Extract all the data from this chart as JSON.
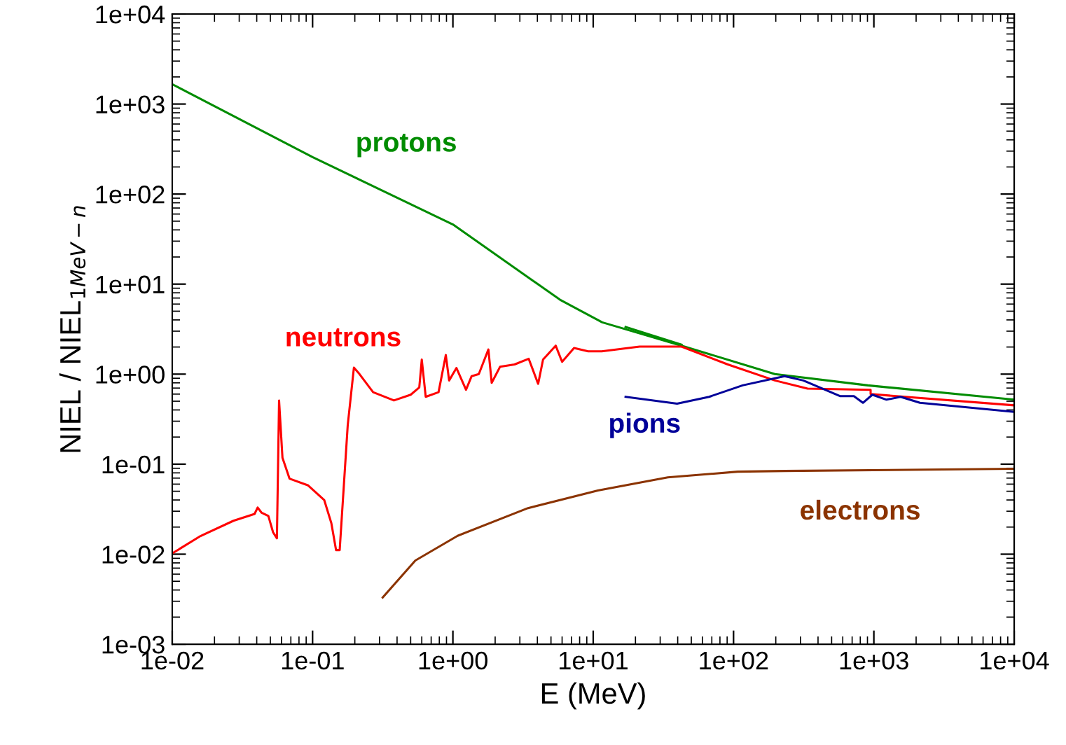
{
  "chart_data": {
    "type": "line",
    "xlabel": "E (MeV)",
    "ylabel": "NIEL / NIEL$_{1MeV−n}$",
    "log": "xy",
    "grid": false,
    "legend": false,
    "xlim": [
      0.01,
      10000
    ],
    "ylim": [
      0.001,
      10000
    ],
    "xticks": [
      {
        "value": 0.01,
        "label": "1e-02"
      },
      {
        "value": 0.1,
        "label": "1e-01"
      },
      {
        "value": 1,
        "label": "1e+00"
      },
      {
        "value": 10,
        "label": "1e+01"
      },
      {
        "value": 100,
        "label": "1e+02"
      },
      {
        "value": 1000,
        "label": "1e+03"
      },
      {
        "value": 10000,
        "label": "1e+04"
      }
    ],
    "yticks": [
      {
        "value": 0.001,
        "label": "1e-03"
      },
      {
        "value": 0.01,
        "label": "1e-02"
      },
      {
        "value": 0.1,
        "label": "1e-01"
      },
      {
        "value": 1,
        "label": "1e+00"
      },
      {
        "value": 10,
        "label": "1e+01"
      },
      {
        "value": 100,
        "label": "1e+02"
      },
      {
        "value": 1000,
        "label": "1e+03"
      },
      {
        "value": 10000,
        "label": "1e+04"
      }
    ],
    "series": [
      {
        "name": "protons",
        "color": "#008c00",
        "x": [
          0.01,
          0.1,
          1,
          5.8,
          11.6,
          42.6,
          197,
          905,
          10000
        ],
        "values": [
          1660,
          257,
          46,
          6.7,
          3.76,
          2.07,
          1.0,
          0.75,
          0.52
        ]
      },
      {
        "color": "#008c00",
        "x": [
          17,
          42.6
        ],
        "values": [
          3.34,
          2.12
        ]
      },
      {
        "name": "neutrons",
        "color": "#ff0000",
        "x": [
          0.01,
          0.0159,
          0.0273,
          0.0386,
          0.0406,
          0.0432,
          0.0484,
          0.0523,
          0.0557,
          0.0577,
          0.061,
          0.0685,
          0.093,
          0.121,
          0.136,
          0.147,
          0.156,
          0.178,
          0.197,
          0.216,
          0.27,
          0.38,
          0.5,
          0.576,
          0.6,
          0.64,
          0.79,
          0.89,
          0.94,
          1.06,
          1.24,
          1.36,
          1.53,
          1.79,
          1.89,
          2.17,
          2.75,
          3.47,
          4.05,
          4.39,
          5.4,
          6.0,
          7.3,
          9.2,
          11.5,
          21.4,
          42.6,
          91,
          197,
          337,
          948,
          948,
          10000
        ],
        "values": [
          0.0102,
          0.0159,
          0.0235,
          0.028,
          0.033,
          0.029,
          0.0266,
          0.0175,
          0.015,
          0.51,
          0.118,
          0.069,
          0.058,
          0.04,
          0.0222,
          0.0111,
          0.0111,
          0.27,
          1.18,
          1.0,
          0.63,
          0.51,
          0.59,
          0.71,
          1.45,
          0.56,
          0.63,
          1.63,
          0.85,
          1.17,
          0.67,
          0.95,
          1.0,
          1.88,
          0.8,
          1.21,
          1.28,
          1.48,
          0.78,
          1.45,
          2.07,
          1.37,
          1.95,
          1.79,
          1.79,
          2.02,
          2.02,
          1.28,
          0.85,
          0.69,
          0.67,
          0.6,
          0.45
        ]
      },
      {
        "name": "pions",
        "color": "#000099",
        "x": [
          17,
          39.6,
          67,
          116,
          231,
          314,
          573,
          720,
          836,
          975,
          1230,
          1550,
          2130,
          10000
        ],
        "values": [
          0.56,
          0.47,
          0.56,
          0.75,
          0.95,
          0.85,
          0.57,
          0.57,
          0.48,
          0.59,
          0.52,
          0.56,
          0.48,
          0.38
        ]
      },
      {
        "name": "electrons",
        "color": "#8b3300",
        "x": [
          0.316,
          0.54,
          1.08,
          3.43,
          10.8,
          34,
          107,
          231,
          10000
        ],
        "values": [
          0.0033,
          0.0085,
          0.016,
          0.0325,
          0.051,
          0.0713,
          0.0825,
          0.084,
          0.0887
        ]
      }
    ]
  }
}
